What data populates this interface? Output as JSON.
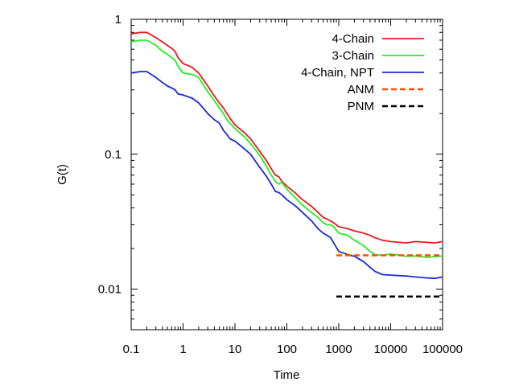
{
  "chart_data": {
    "type": "line",
    "xlabel": "Time",
    "ylabel": "G(t)",
    "xscale": "log",
    "yscale": "log",
    "xlim": [
      0.1,
      100000
    ],
    "ylim": [
      0.005,
      1
    ],
    "grid": false,
    "legend_position": "top-right",
    "x_ticks": [
      0.1,
      1,
      10,
      100,
      1000,
      10000,
      100000
    ],
    "x_tick_labels": [
      "0.1",
      "1",
      "10",
      "100",
      "1000",
      "10000",
      "100000"
    ],
    "y_ticks": [
      0.01,
      0.1,
      1
    ],
    "y_tick_labels": [
      "0.01",
      "0.1",
      "1"
    ],
    "series": [
      {
        "name": "4-Chain",
        "color": "#e8191c",
        "style": "solid",
        "x": [
          0.1,
          0.15,
          0.2,
          0.3,
          0.4,
          0.5,
          0.6,
          0.7,
          0.8,
          1,
          1.5,
          2,
          3,
          4,
          5,
          6,
          7,
          8,
          10,
          15,
          20,
          30,
          40,
          50,
          60,
          70,
          80,
          100,
          150,
          200,
          300,
          400,
          500,
          600,
          700,
          800,
          1000,
          1500,
          2000,
          3000,
          4000,
          5000,
          7000,
          10000,
          20000,
          30000,
          50000,
          70000,
          100000
        ],
        "y": [
          0.78,
          0.8,
          0.8,
          0.73,
          0.68,
          0.64,
          0.61,
          0.58,
          0.52,
          0.47,
          0.44,
          0.4,
          0.32,
          0.27,
          0.24,
          0.22,
          0.2,
          0.185,
          0.165,
          0.145,
          0.13,
          0.105,
          0.09,
          0.078,
          0.07,
          0.068,
          0.063,
          0.058,
          0.051,
          0.046,
          0.041,
          0.037,
          0.034,
          0.033,
          0.032,
          0.031,
          0.029,
          0.028,
          0.027,
          0.026,
          0.025,
          0.024,
          0.023,
          0.0225,
          0.022,
          0.0225,
          0.0222,
          0.022,
          0.0225
        ]
      },
      {
        "name": "3-Chain",
        "color": "#22ee22",
        "style": "solid",
        "x": [
          0.1,
          0.15,
          0.2,
          0.3,
          0.4,
          0.5,
          0.6,
          0.7,
          0.8,
          1,
          1.5,
          2,
          3,
          4,
          5,
          6,
          7,
          8,
          10,
          15,
          20,
          30,
          40,
          50,
          60,
          70,
          80,
          100,
          150,
          200,
          300,
          400,
          500,
          600,
          700,
          800,
          1000,
          1500,
          2000,
          3000,
          4000,
          5000,
          7000,
          10000,
          20000,
          30000,
          50000,
          70000,
          100000
        ],
        "y": [
          0.68,
          0.7,
          0.7,
          0.64,
          0.58,
          0.55,
          0.52,
          0.5,
          0.45,
          0.4,
          0.39,
          0.37,
          0.29,
          0.25,
          0.22,
          0.2,
          0.18,
          0.17,
          0.155,
          0.135,
          0.12,
          0.098,
          0.082,
          0.07,
          0.063,
          0.06,
          0.062,
          0.055,
          0.047,
          0.042,
          0.037,
          0.034,
          0.031,
          0.03,
          0.03,
          0.029,
          0.026,
          0.025,
          0.023,
          0.021,
          0.019,
          0.018,
          0.0178,
          0.0182,
          0.0175,
          0.0176,
          0.0172,
          0.0174,
          0.0176
        ]
      },
      {
        "name": "4-Chain, NPT",
        "color": "#1a28d8",
        "style": "solid",
        "x": [
          0.1,
          0.15,
          0.2,
          0.3,
          0.4,
          0.5,
          0.6,
          0.7,
          0.8,
          1,
          1.5,
          2,
          3,
          4,
          5,
          6,
          7,
          8,
          10,
          15,
          20,
          30,
          40,
          50,
          60,
          70,
          80,
          100,
          150,
          200,
          300,
          400,
          500,
          600,
          700,
          800,
          1000,
          1500,
          2000,
          3000,
          4000,
          5000,
          7000,
          10000,
          20000,
          30000,
          50000,
          70000,
          100000
        ],
        "y": [
          0.4,
          0.41,
          0.41,
          0.37,
          0.34,
          0.32,
          0.31,
          0.3,
          0.28,
          0.275,
          0.26,
          0.24,
          0.2,
          0.18,
          0.17,
          0.15,
          0.14,
          0.13,
          0.125,
          0.11,
          0.1,
          0.08,
          0.069,
          0.06,
          0.053,
          0.052,
          0.05,
          0.046,
          0.041,
          0.037,
          0.032,
          0.028,
          0.026,
          0.025,
          0.024,
          0.022,
          0.019,
          0.018,
          0.0175,
          0.016,
          0.0145,
          0.0135,
          0.0128,
          0.0127,
          0.0125,
          0.0123,
          0.0121,
          0.012,
          0.0123
        ]
      },
      {
        "name": "ANM",
        "color": "#ff4d00",
        "style": "dashed",
        "x": [
          900,
          100000
        ],
        "y": [
          0.0178,
          0.0178
        ]
      },
      {
        "name": "PNM",
        "color": "#000000",
        "style": "dashed",
        "x": [
          900,
          100000
        ],
        "y": [
          0.0088,
          0.0088
        ]
      }
    ]
  }
}
